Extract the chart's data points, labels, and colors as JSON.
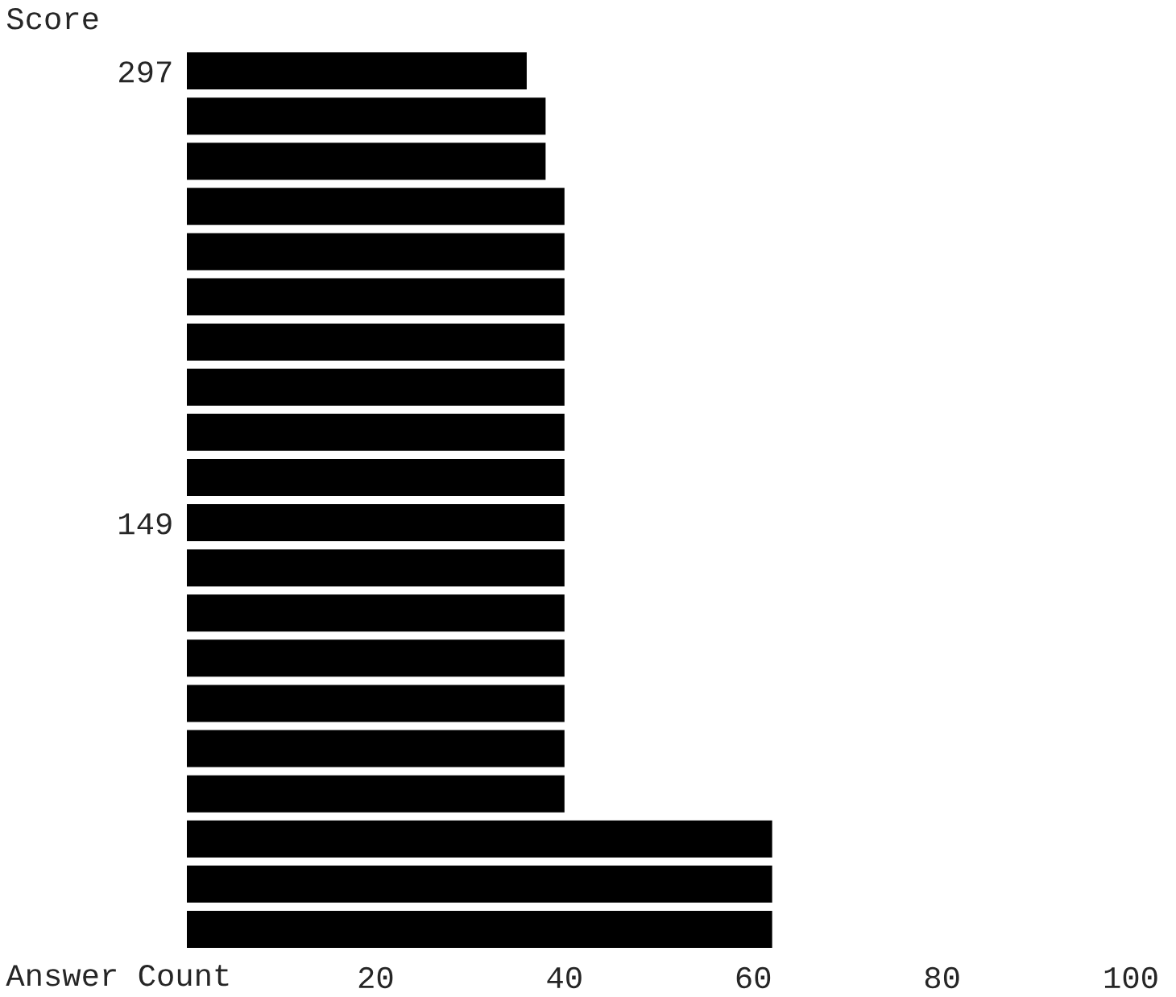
{
  "chart_data": {
    "type": "bar",
    "orientation": "horizontal",
    "ylabel": "Score",
    "xlabel": "Answer Count",
    "categories": [
      "297",
      null,
      null,
      null,
      null,
      null,
      null,
      null,
      null,
      null,
      "149",
      null,
      null,
      null,
      null,
      null,
      null,
      null,
      null,
      null
    ],
    "values": [
      36,
      38,
      38,
      40,
      40,
      40,
      40,
      40,
      40,
      40,
      40,
      40,
      40,
      40,
      40,
      40,
      40,
      62,
      62,
      62
    ],
    "color": "#000000",
    "xlim": [
      0,
      100
    ],
    "xticks": [
      20,
      40,
      60,
      80,
      100
    ],
    "grid": false
  }
}
